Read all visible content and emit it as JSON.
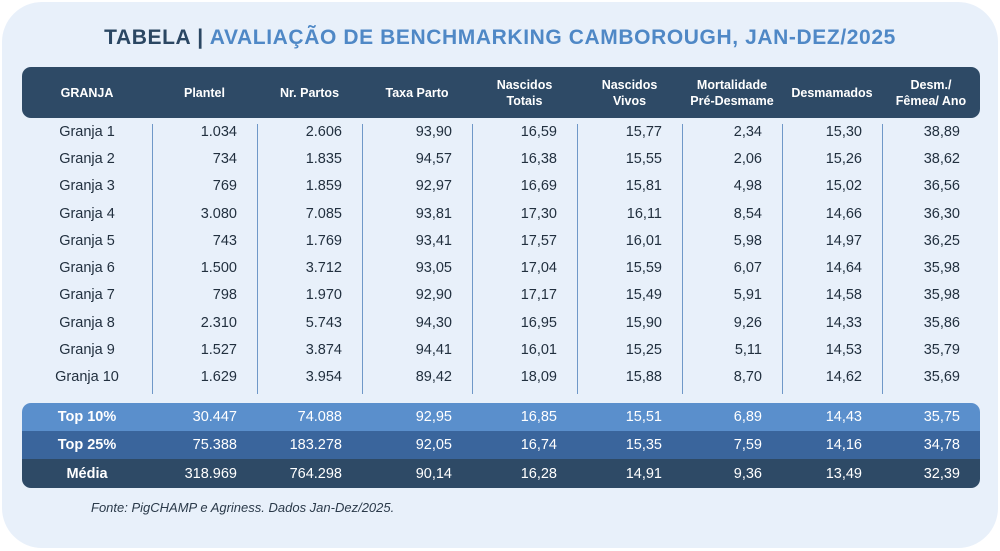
{
  "title": {
    "prefix": "TABELA",
    "separator": "|",
    "main": "AVALIAÇÃO DE BENCHMARKING CAMBOROUGH, JAN-DEZ/2025"
  },
  "columns": [
    "GRANJA",
    "Plantel",
    "Nr. Partos",
    "Taxa Parto",
    "Nascidos\nTotais",
    "Nascidos\nVivos",
    "Mortalidade\nPré-Desmame",
    "Desmamados",
    "Desm./\nFêmea/ Ano"
  ],
  "rows": [
    [
      "Granja 1",
      "1.034",
      "2.606",
      "93,90",
      "16,59",
      "15,77",
      "2,34",
      "15,30",
      "38,89"
    ],
    [
      "Granja 2",
      "734",
      "1.835",
      "94,57",
      "16,38",
      "15,55",
      "2,06",
      "15,26",
      "38,62"
    ],
    [
      "Granja 3",
      "769",
      "1.859",
      "92,97",
      "16,69",
      "15,81",
      "4,98",
      "15,02",
      "36,56"
    ],
    [
      "Granja 4",
      "3.080",
      "7.085",
      "93,81",
      "17,30",
      "16,11",
      "8,54",
      "14,66",
      "36,30"
    ],
    [
      "Granja 5",
      "743",
      "1.769",
      "93,41",
      "17,57",
      "16,01",
      "5,98",
      "14,97",
      "36,25"
    ],
    [
      "Granja 6",
      "1.500",
      "3.712",
      "93,05",
      "17,04",
      "15,59",
      "6,07",
      "14,64",
      "35,98"
    ],
    [
      "Granja 7",
      "798",
      "1.970",
      "92,90",
      "17,17",
      "15,49",
      "5,91",
      "14,58",
      "35,98"
    ],
    [
      "Granja 8",
      "2.310",
      "5.743",
      "94,30",
      "16,95",
      "15,90",
      "9,26",
      "14,33",
      "35,86"
    ],
    [
      "Granja 9",
      "1.527",
      "3.874",
      "94,41",
      "16,01",
      "15,25",
      "5,11",
      "14,53",
      "35,79"
    ],
    [
      "Granja 10",
      "1.629",
      "3.954",
      "89,42",
      "18,09",
      "15,88",
      "8,70",
      "14,62",
      "35,69"
    ]
  ],
  "summary": {
    "top10": [
      "Top 10%",
      "30.447",
      "74.088",
      "92,95",
      "16,85",
      "15,51",
      "6,89",
      "14,43",
      "35,75"
    ],
    "top25": [
      "Top 25%",
      "75.388",
      "183.278",
      "92,05",
      "16,74",
      "15,35",
      "7,59",
      "14,16",
      "34,78"
    ],
    "media": [
      "Média",
      "318.969",
      "764.298",
      "90,14",
      "16,28",
      "14,91",
      "9,36",
      "13,49",
      "32,39"
    ]
  },
  "source": "Fonte: PigCHAMP e Agriness. Dados Jan-Dez/2025.",
  "colors": {
    "background": "#e8f0fa",
    "header": "#2e4a66",
    "title_accent": "#4f88c6",
    "top10": "#5a8fcc",
    "top25": "#3a659c",
    "media": "#2e4a66",
    "divider": "#6f98c8"
  }
}
